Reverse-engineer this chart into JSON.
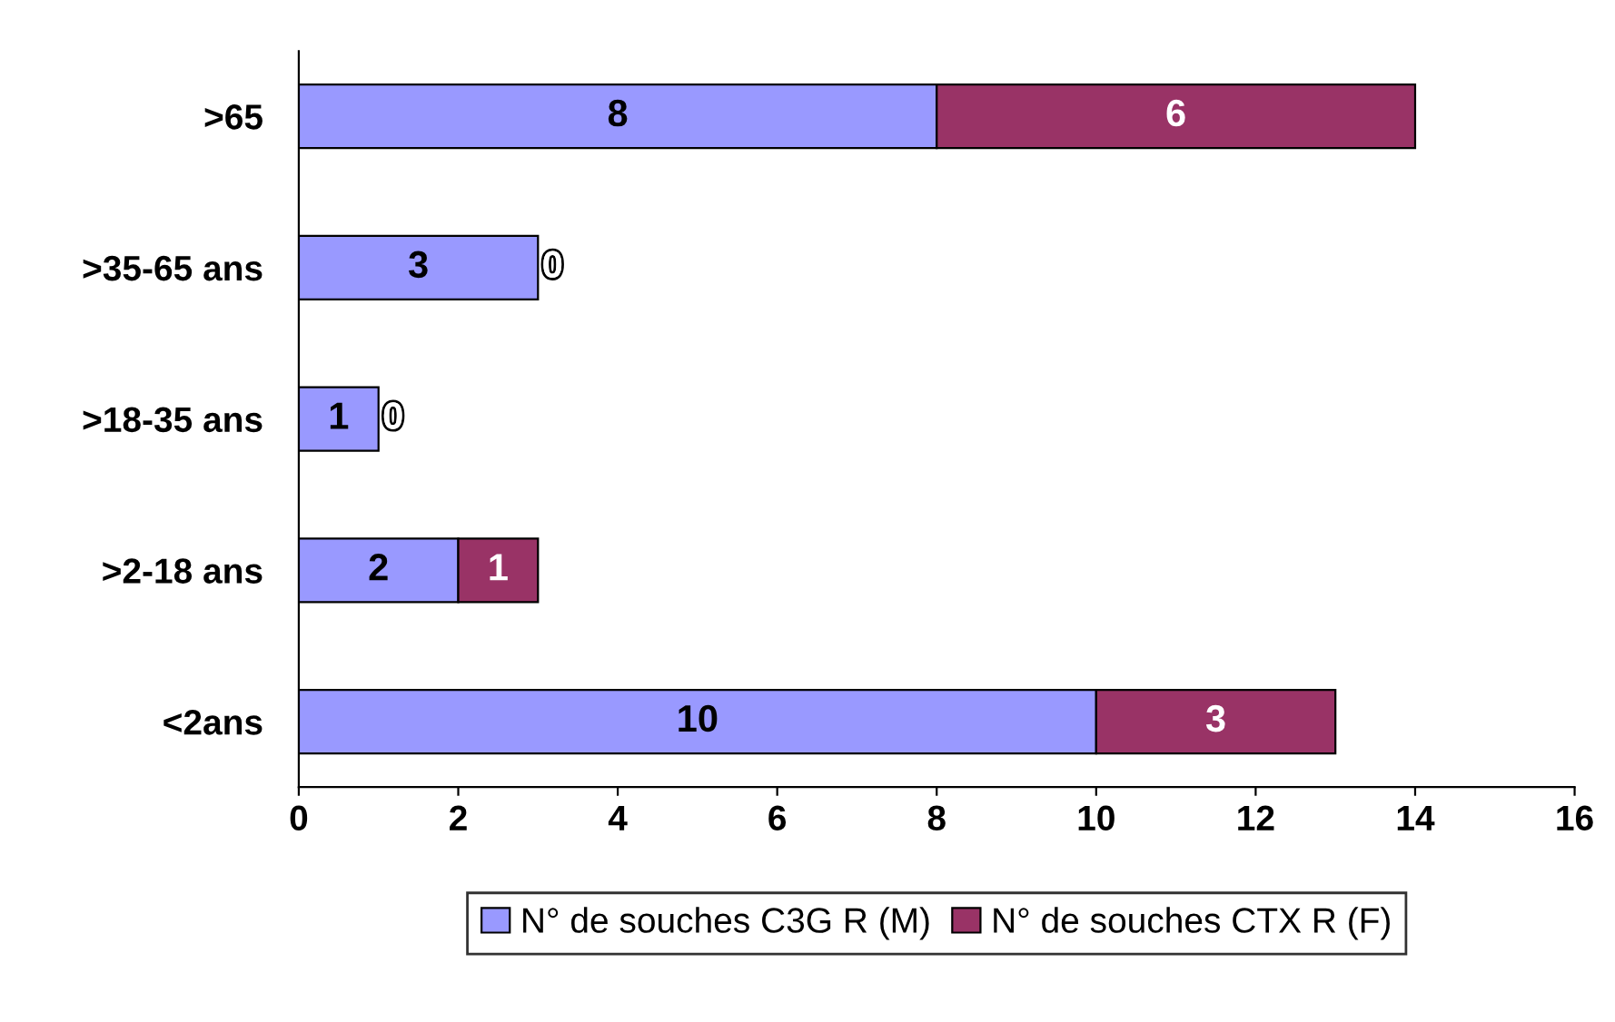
{
  "chart_data": {
    "type": "bar",
    "orientation": "horizontal",
    "stacked": true,
    "categories": [
      ">65",
      ">35-65 ans",
      ">18-35 ans",
      ">2-18 ans",
      "<2ans"
    ],
    "series": [
      {
        "name": "N° de souches C3G R (M)",
        "color": "#9999ff",
        "values": [
          8,
          3,
          1,
          2,
          10
        ]
      },
      {
        "name": "N° de souches CTX R (F)",
        "color": "#993366",
        "values": [
          6,
          0,
          0,
          1,
          3
        ]
      }
    ],
    "xlim": [
      0,
      16
    ],
    "xticks": [
      0,
      2,
      4,
      6,
      8,
      10,
      12,
      14,
      16
    ],
    "data_labels": true,
    "grid": false,
    "legend": "bottom"
  }
}
